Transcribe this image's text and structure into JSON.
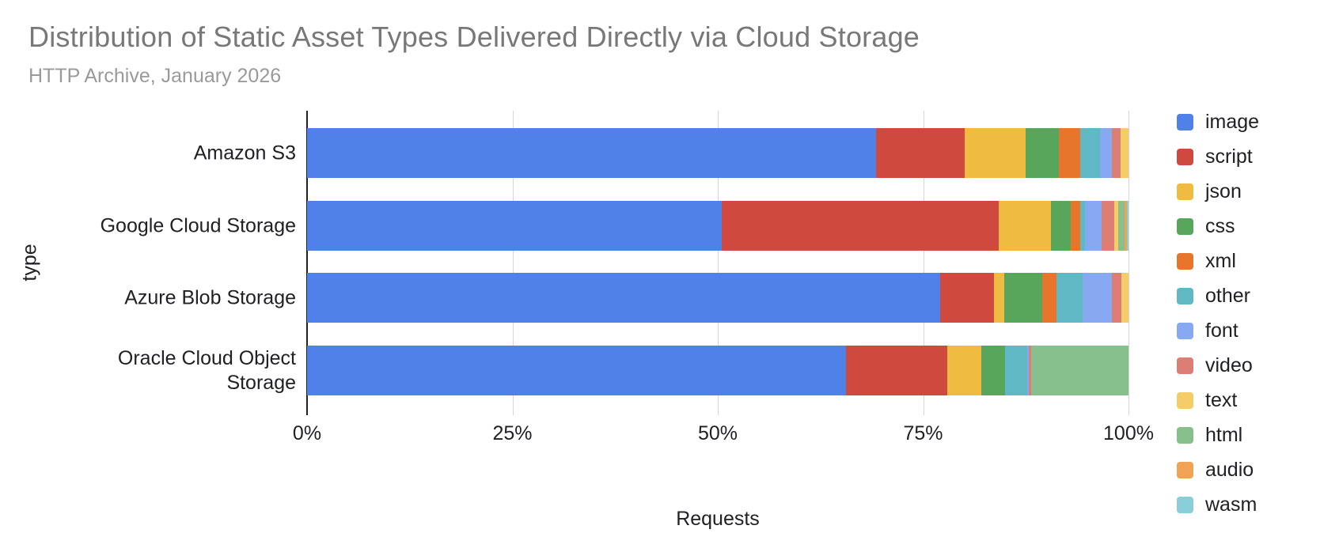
{
  "header": {
    "title": "Distribution of Static Asset Types Delivered Directly via Cloud Storage",
    "subtitle": "HTTP Archive, January 2026"
  },
  "chart_data": {
    "type": "bar",
    "variant": "horizontal-stacked-100",
    "title": "Distribution of Static Asset Types Delivered Directly via Cloud Storage",
    "subtitle": "HTTP Archive, January 2026",
    "xlabel": "Requests",
    "ylabel": "type",
    "xlim": [
      0,
      100
    ],
    "x_ticks": [
      {
        "label": "0%",
        "value": 0
      },
      {
        "label": "25%",
        "value": 25
      },
      {
        "label": "50%",
        "value": 50
      },
      {
        "label": "75%",
        "value": 75
      },
      {
        "label": "100%",
        "value": 100
      }
    ],
    "grid": true,
    "legend_position": "right",
    "categories": [
      "Amazon S3",
      "Google Cloud Storage",
      "Azure Blob Storage",
      "Oracle Cloud Object Storage"
    ],
    "series": [
      {
        "name": "image",
        "color": "#4F81E8",
        "values": [
          69.3,
          50.5,
          77.1,
          65.6
        ]
      },
      {
        "name": "script",
        "color": "#D0493F",
        "values": [
          10.8,
          33.7,
          6.5,
          12.3
        ]
      },
      {
        "name": "json",
        "color": "#EFBB41",
        "values": [
          7.4,
          6.4,
          1.3,
          4.2
        ]
      },
      {
        "name": "css",
        "color": "#58A55C",
        "values": [
          4.0,
          2.4,
          4.6,
          2.9
        ]
      },
      {
        "name": "xml",
        "color": "#E8752C",
        "values": [
          2.6,
          1.1,
          1.7,
          0
        ]
      },
      {
        "name": "other",
        "color": "#60B8C4",
        "values": [
          2.4,
          0.6,
          3.2,
          2.7
        ]
      },
      {
        "name": "font",
        "color": "#86A9F1",
        "values": [
          1.5,
          2.0,
          3.6,
          0.2
        ]
      },
      {
        "name": "video",
        "color": "#DC7E74",
        "values": [
          1.0,
          1.6,
          1.1,
          0.3
        ]
      },
      {
        "name": "text",
        "color": "#F4CD68",
        "values": [
          1.0,
          0.5,
          0.9,
          0
        ]
      },
      {
        "name": "html",
        "color": "#87BF8D",
        "values": [
          0,
          0.7,
          0,
          11.8
        ]
      },
      {
        "name": "audio",
        "color": "#F0A355",
        "values": [
          0,
          0.3,
          0,
          0
        ]
      },
      {
        "name": "wasm",
        "color": "#89CFD9",
        "values": [
          0,
          0.2,
          0,
          0
        ]
      }
    ]
  }
}
